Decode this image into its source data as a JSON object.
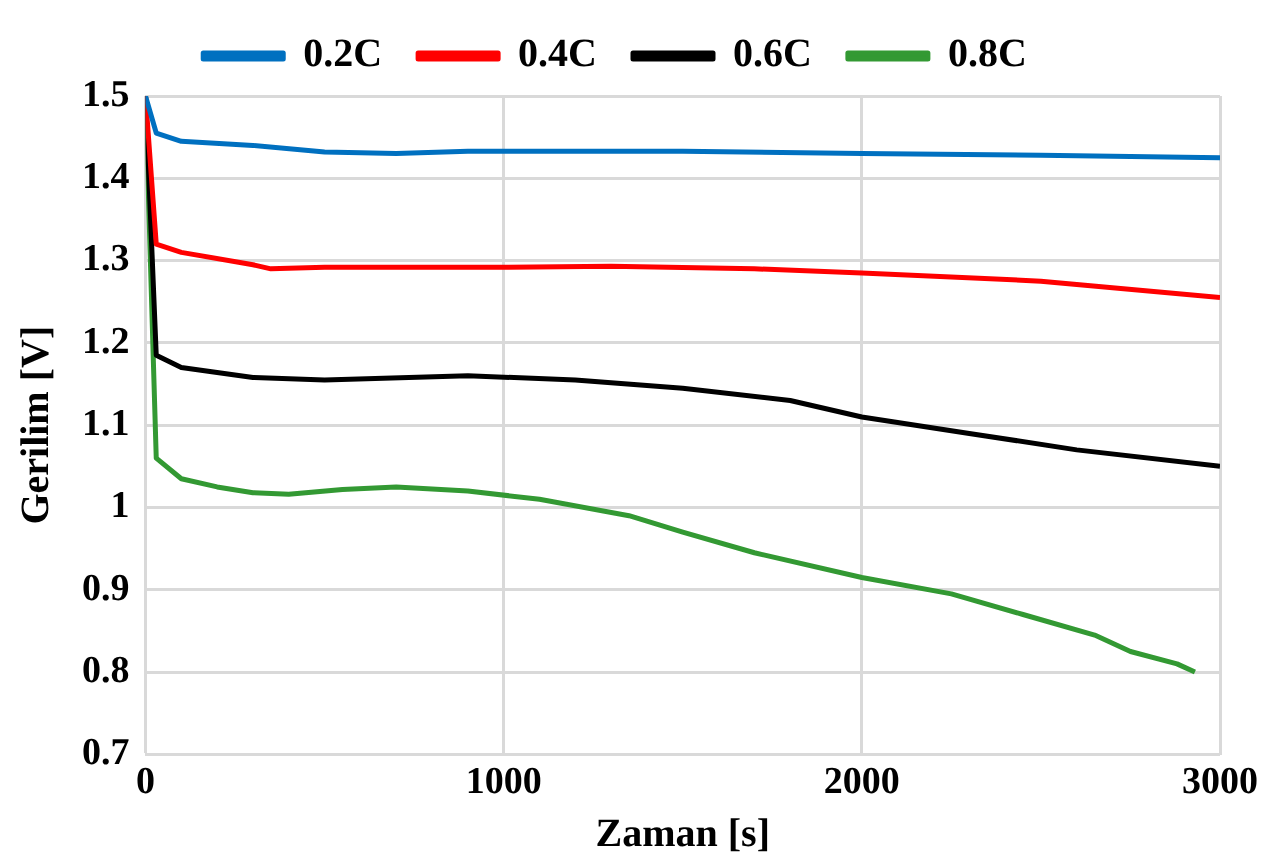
{
  "chart_data": {
    "type": "line",
    "xlabel": "Zaman [s]",
    "ylabel": "Gerilim [V]",
    "xlim": [
      0,
      3000
    ],
    "xticks": [
      0,
      1000,
      2000,
      3000
    ],
    "ylim": [
      0.7,
      1.5
    ],
    "yticks": [
      0.7,
      0.8,
      0.9,
      1,
      1.1,
      1.2,
      1.3,
      1.4,
      1.5
    ],
    "grid": true,
    "legend": "top",
    "marker": "none",
    "line_style": "solid",
    "series": [
      {
        "name": "0.2C",
        "color": "#0070c0",
        "x": [
          0,
          30,
          100,
          300,
          500,
          700,
          900,
          1500,
          2000,
          2500,
          3000
        ],
        "values": [
          1.5,
          1.455,
          1.445,
          1.44,
          1.432,
          1.43,
          1.433,
          1.433,
          1.43,
          1.428,
          1.425
        ]
      },
      {
        "name": "0.4C",
        "color": "#ff0000",
        "x": [
          0,
          30,
          100,
          300,
          350,
          500,
          1000,
          1300,
          1700,
          2000,
          2500,
          3000
        ],
        "values": [
          1.5,
          1.32,
          1.31,
          1.295,
          1.29,
          1.292,
          1.292,
          1.293,
          1.29,
          1.285,
          1.275,
          1.255
        ]
      },
      {
        "name": "0.6C",
        "color": "#000000",
        "x": [
          0,
          30,
          100,
          300,
          500,
          900,
          1200,
          1500,
          1800,
          2000,
          2300,
          2600,
          3000
        ],
        "values": [
          1.5,
          1.185,
          1.17,
          1.158,
          1.155,
          1.16,
          1.155,
          1.145,
          1.13,
          1.11,
          1.09,
          1.07,
          1.05
        ]
      },
      {
        "name": "0.8C",
        "color": "#339933",
        "x": [
          0,
          30,
          100,
          200,
          300,
          400,
          550,
          700,
          900,
          1100,
          1350,
          1500,
          1700,
          2000,
          2250,
          2450,
          2650,
          2750,
          2880,
          2930
        ],
        "values": [
          1.5,
          1.06,
          1.035,
          1.025,
          1.018,
          1.016,
          1.022,
          1.025,
          1.02,
          1.01,
          0.99,
          0.97,
          0.945,
          0.915,
          0.895,
          0.87,
          0.845,
          0.825,
          0.81,
          0.8
        ]
      }
    ]
  }
}
